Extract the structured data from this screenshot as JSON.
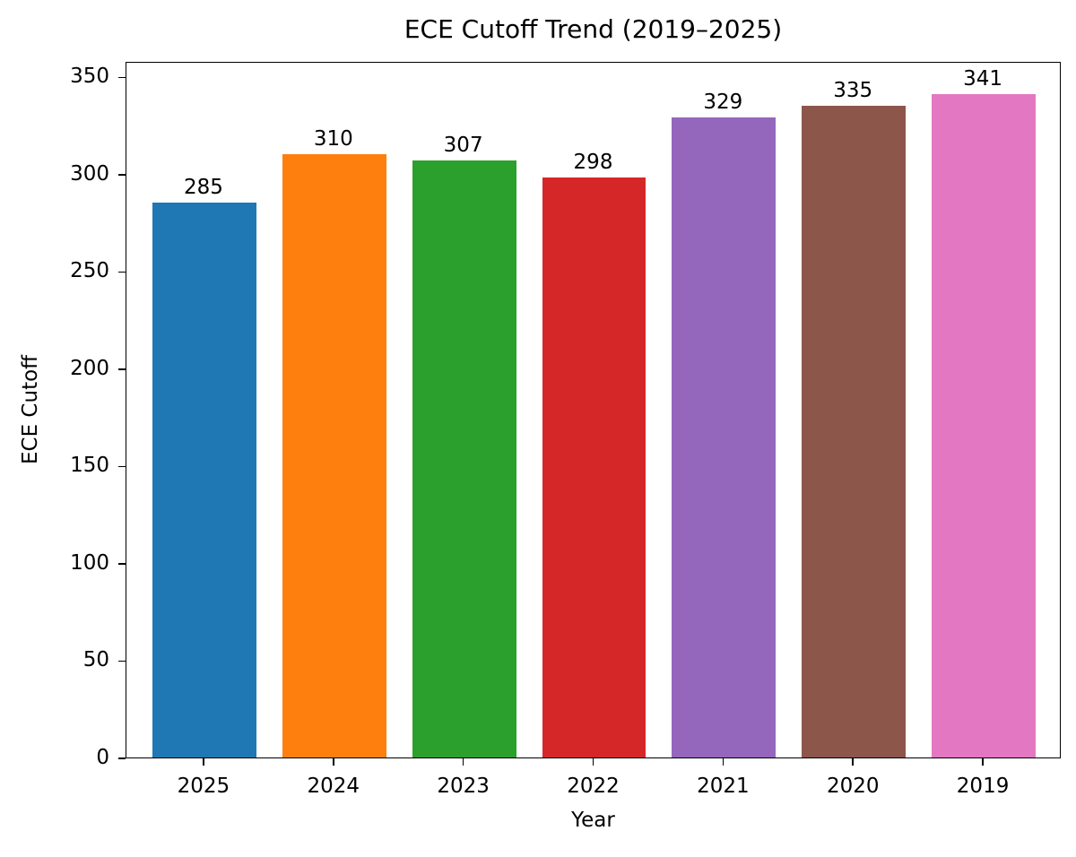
{
  "chart_data": {
    "type": "bar",
    "title": "ECE Cutoff Trend (2019–2025)",
    "xlabel": "Year",
    "ylabel": "ECE Cutoff",
    "categories": [
      "2025",
      "2024",
      "2023",
      "2022",
      "2021",
      "2020",
      "2019"
    ],
    "values": [
      285,
      310,
      307,
      298,
      329,
      335,
      341
    ],
    "colors": [
      "#1f77b4",
      "#ff7f0e",
      "#2ca02c",
      "#d62728",
      "#9467bd",
      "#8c564b",
      "#e377c2"
    ],
    "bar_labels": [
      "285",
      "310",
      "307",
      "298",
      "329",
      "335",
      "341"
    ],
    "ylim": [
      0,
      358
    ],
    "yticks": [
      "0",
      "50",
      "100",
      "150",
      "200",
      "250",
      "300",
      "350"
    ],
    "grid": false,
    "legend": null
  }
}
